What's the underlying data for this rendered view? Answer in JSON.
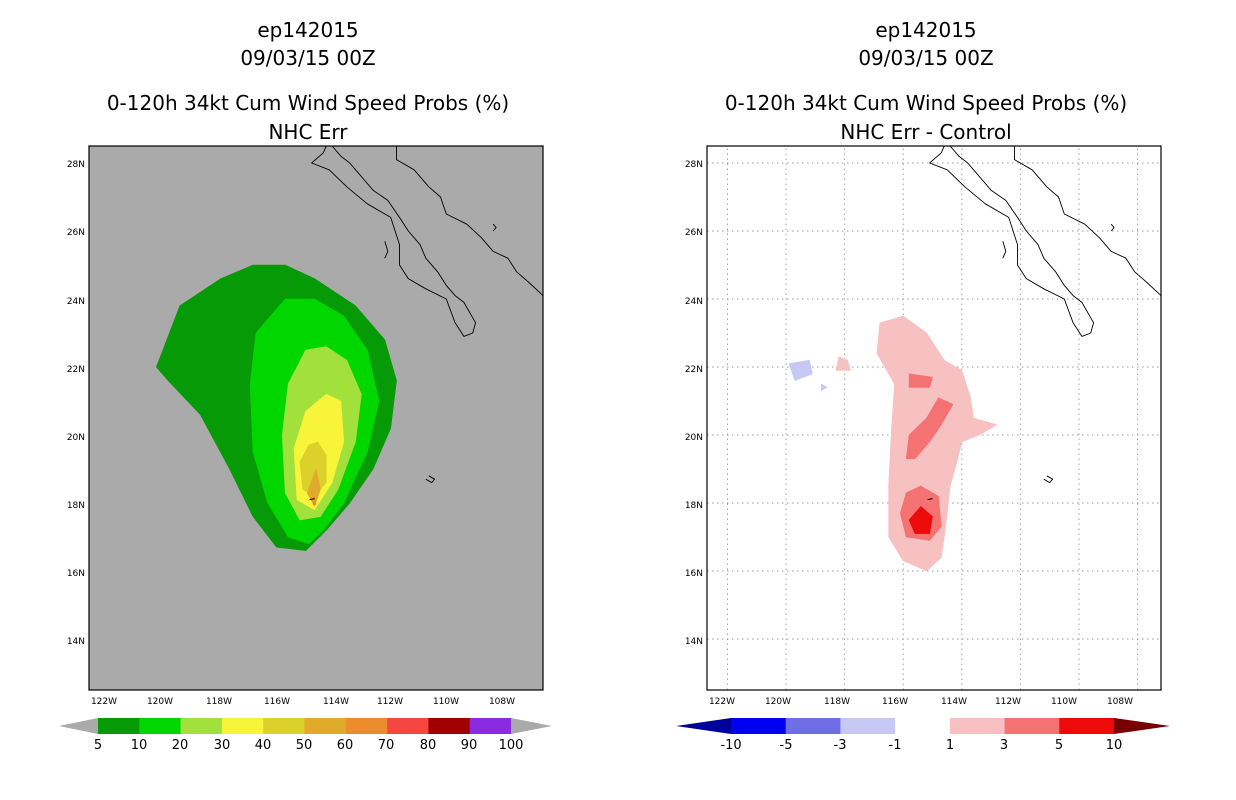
{
  "chart_data": [
    {
      "type": "contour-map",
      "title_lines": [
        "ep142015",
        "09/03/15 00Z",
        "0-120h 34kt Cum Wind Speed Probs (%)",
        "NHC Err"
      ],
      "x_range_deg_west": [
        122.7,
        107.2
      ],
      "y_range_deg_north": [
        12.5,
        28.5
      ],
      "x_ticks": [
        "122W",
        "120W",
        "118W",
        "116W",
        "114W",
        "112W",
        "110W",
        "108W"
      ],
      "y_ticks": [
        "14N",
        "16N",
        "18N",
        "20N",
        "22N",
        "24N",
        "26N",
        "28N"
      ],
      "background_color": "#aaaaaa",
      "gridlines": false,
      "colorbar": {
        "labels": [
          "5",
          "10",
          "20",
          "30",
          "40",
          "50",
          "60",
          "70",
          "80",
          "90",
          "100"
        ],
        "colors": [
          "#079a07",
          "#00d700",
          "#a2e13c",
          "#f7f43a",
          "#dcd02a",
          "#e0aa2b",
          "#ec8c2c",
          "#f54643",
          "#a00000",
          "#8a2be2"
        ],
        "end_color": "#aaaaaa"
      },
      "filled_levels": [
        {
          "level": 5,
          "color": "#079a07",
          "points": [
            [
              -120.4,
              22
            ],
            [
              -119.6,
              23.8
            ],
            [
              -118.2,
              24.6
            ],
            [
              -117.1,
              25
            ],
            [
              -116,
              25
            ],
            [
              -115,
              24.6
            ],
            [
              -113.6,
              23.8
            ],
            [
              -112.6,
              22.8
            ],
            [
              -112.2,
              21.6
            ],
            [
              -112.4,
              20.2
            ],
            [
              -113,
              19
            ],
            [
              -113.8,
              18
            ],
            [
              -114.6,
              17.2
            ],
            [
              -115.3,
              16.6
            ],
            [
              -116.3,
              16.7
            ],
            [
              -117.1,
              17.6
            ],
            [
              -117.9,
              19
            ],
            [
              -118.9,
              20.6
            ],
            [
              -120,
              21.6
            ]
          ]
        },
        {
          "level": 10,
          "color": "#00d700",
          "points": [
            [
              -117,
              23
            ],
            [
              -116,
              24
            ],
            [
              -115,
              24
            ],
            [
              -114,
              23.5
            ],
            [
              -113.2,
              22.5
            ],
            [
              -112.8,
              21
            ],
            [
              -113.2,
              19.5
            ],
            [
              -114,
              18
            ],
            [
              -114.7,
              17.2
            ],
            [
              -115.2,
              16.8
            ],
            [
              -115.9,
              17
            ],
            [
              -116.6,
              18
            ],
            [
              -117.1,
              19.5
            ],
            [
              -117.2,
              21.5
            ]
          ]
        },
        {
          "level": 20,
          "color": "#a2e13c",
          "points": [
            [
              -115.3,
              22.5
            ],
            [
              -114.6,
              22.6
            ],
            [
              -113.9,
              22.2
            ],
            [
              -113.4,
              21.2
            ],
            [
              -113.6,
              19.8
            ],
            [
              -114.2,
              18.4
            ],
            [
              -114.8,
              17.6
            ],
            [
              -115.5,
              17.5
            ],
            [
              -116,
              18.3
            ],
            [
              -116.1,
              20
            ],
            [
              -115.9,
              21.5
            ]
          ]
        },
        {
          "level": 30,
          "color": "#f7f43a",
          "points": [
            [
              -114.6,
              21.2
            ],
            [
              -114.1,
              21
            ],
            [
              -114,
              19.8
            ],
            [
              -114.4,
              18.6
            ],
            [
              -115,
              17.8
            ],
            [
              -115.6,
              18.1
            ],
            [
              -115.7,
              19.6
            ],
            [
              -115.3,
              20.7
            ]
          ]
        },
        {
          "level": 40,
          "color": "#dcd02a",
          "points": [
            [
              -114.9,
              19.8
            ],
            [
              -114.6,
              19.4
            ],
            [
              -114.6,
              18.6
            ],
            [
              -115,
              18.2
            ],
            [
              -115.4,
              18.4
            ],
            [
              -115.5,
              19.2
            ],
            [
              -115.2,
              19.7
            ]
          ]
        },
        {
          "level": 50,
          "color": "#e0aa2b",
          "points": [
            [
              -114.95,
              19
            ],
            [
              -114.8,
              18.4
            ],
            [
              -115,
              17.9
            ],
            [
              -115.25,
              18.3
            ]
          ]
        },
        {
          "level": 60,
          "color": "#ec8c2c",
          "points": [
            [
              -115,
              18.2
            ],
            [
              -114.95,
              17.95
            ],
            [
              -115.05,
              17.95
            ]
          ]
        }
      ]
    },
    {
      "type": "contour-map",
      "title_lines": [
        "ep142015",
        "09/03/15 00Z",
        "0-120h 34kt Cum Wind Speed Probs (%)",
        "NHC Err - Control"
      ],
      "x_range_deg_west": [
        122.7,
        107.2
      ],
      "y_range_deg_north": [
        12.5,
        28.5
      ],
      "x_ticks": [
        "122W",
        "120W",
        "118W",
        "116W",
        "114W",
        "112W",
        "110W",
        "108W"
      ],
      "y_ticks": [
        "14N",
        "16N",
        "18N",
        "20N",
        "22N",
        "24N",
        "26N",
        "28N"
      ],
      "background_color": "#ffffff",
      "gridlines": true,
      "colorbar": {
        "labels": [
          "-10",
          "-5",
          "-3",
          "-1",
          "1",
          "3",
          "5",
          "10"
        ],
        "colors": [
          "#0000f0",
          "#6e6ee6",
          "#c8c8f5",
          "#ffffff",
          "#f8c1c1",
          "#f47272",
          "#ec0a0a"
        ],
        "left_end_color": "#00009a",
        "right_end_color": "#780000"
      },
      "filled_levels": [
        {
          "level": 1,
          "color": "#f8c1c1",
          "points": [
            [
              -116.8,
              23.3
            ],
            [
              -116,
              23.5
            ],
            [
              -115.2,
              23
            ],
            [
              -114.6,
              22.2
            ],
            [
              -114,
              21.9
            ],
            [
              -113.7,
              21.1
            ],
            [
              -113.6,
              20.5
            ],
            [
              -112.8,
              20.3
            ],
            [
              -113.4,
              20
            ],
            [
              -114,
              19.8
            ],
            [
              -114.2,
              19.1
            ],
            [
              -114.4,
              18.5
            ],
            [
              -114.5,
              17.7
            ],
            [
              -114.6,
              17
            ],
            [
              -114.7,
              16.4
            ],
            [
              -115.2,
              16
            ],
            [
              -116,
              16.3
            ],
            [
              -116.5,
              17
            ],
            [
              -116.5,
              18.5
            ],
            [
              -116.4,
              20.2
            ],
            [
              -116.3,
              21.5
            ],
            [
              -116.9,
              22.4
            ]
          ]
        },
        {
          "level": 1,
          "color": "#f8c1c1",
          "points": [
            [
              -118.2,
              22.3
            ],
            [
              -117.9,
              22.2
            ],
            [
              -117.8,
              21.9
            ],
            [
              -118.3,
              21.9
            ]
          ]
        },
        {
          "level": -1,
          "color": "#c8c8f5",
          "points": [
            [
              -119.9,
              22.1
            ],
            [
              -119.2,
              22.2
            ],
            [
              -119.1,
              21.8
            ],
            [
              -119.7,
              21.6
            ]
          ]
        },
        {
          "level": -1,
          "color": "#c8c8f5",
          "points": [
            [
              -118.8,
              21.5
            ],
            [
              -118.6,
              21.4
            ],
            [
              -118.8,
              21.3
            ]
          ]
        },
        {
          "level": 3,
          "color": "#f47272",
          "points": [
            [
              -114.8,
              21.1
            ],
            [
              -114.3,
              20.9
            ],
            [
              -114.7,
              20.3
            ],
            [
              -115.1,
              19.8
            ],
            [
              -115.6,
              19.3
            ],
            [
              -115.9,
              19.3
            ],
            [
              -115.8,
              20
            ],
            [
              -115.2,
              20.5
            ]
          ]
        },
        {
          "level": 3,
          "color": "#f47272",
          "points": [
            [
              -115.8,
              21.8
            ],
            [
              -115,
              21.7
            ],
            [
              -115.1,
              21.4
            ],
            [
              -115.8,
              21.4
            ]
          ]
        },
        {
          "level": 3,
          "color": "#f47272",
          "points": [
            [
              -115.4,
              18.5
            ],
            [
              -114.8,
              18.2
            ],
            [
              -114.7,
              17.3
            ],
            [
              -115.1,
              16.9
            ],
            [
              -115.9,
              17
            ],
            [
              -116.1,
              17.7
            ],
            [
              -115.9,
              18.3
            ]
          ]
        },
        {
          "level": 5,
          "color": "#ec0a0a",
          "points": [
            [
              -115.4,
              17.9
            ],
            [
              -115,
              17.6
            ],
            [
              -115.1,
              17.1
            ],
            [
              -115.6,
              17.1
            ],
            [
              -115.8,
              17.5
            ]
          ]
        }
      ]
    }
  ],
  "coastline": [
    [
      [
        -114.4,
        28.5
      ],
      [
        -114.1,
        28.2
      ],
      [
        -113.8,
        28
      ],
      [
        -113.5,
        27.7
      ],
      [
        -113.3,
        27.5
      ],
      [
        -113,
        27.2
      ],
      [
        -112.5,
        26.9
      ],
      [
        -112.1,
        26.4
      ],
      [
        -111.8,
        26
      ],
      [
        -111.4,
        25.6
      ],
      [
        -111.2,
        25.2
      ],
      [
        -110.8,
        24.8
      ],
      [
        -110.5,
        24.4
      ],
      [
        -110.2,
        24.1
      ],
      [
        -109.9,
        23.9
      ],
      [
        -109.5,
        23.3
      ],
      [
        -109.6,
        23
      ],
      [
        -109.9,
        22.9
      ],
      [
        -110.2,
        23.3
      ],
      [
        -110.5,
        24
      ],
      [
        -111.2,
        24.3
      ],
      [
        -111.8,
        24.6
      ],
      [
        -112.1,
        25
      ],
      [
        -112.1,
        25.6
      ],
      [
        -112.4,
        26.4
      ],
      [
        -113.2,
        26.8
      ],
      [
        -113.9,
        27.3
      ],
      [
        -114.5,
        27.8
      ],
      [
        -115.1,
        28
      ],
      [
        -114.7,
        28.3
      ],
      [
        -114.6,
        28.5
      ]
    ],
    [
      [
        -112.2,
        28.5
      ],
      [
        -112.2,
        28.1
      ],
      [
        -111.6,
        27.8
      ],
      [
        -111.1,
        27.3
      ],
      [
        -110.7,
        27
      ],
      [
        -110.5,
        26.5
      ],
      [
        -109.8,
        26.2
      ],
      [
        -109.3,
        25.8
      ],
      [
        -108.9,
        25.4
      ],
      [
        -108.4,
        25.2
      ],
      [
        -108.1,
        24.8
      ],
      [
        -107.7,
        24.5
      ],
      [
        -107.2,
        24.1
      ]
    ],
    [
      [
        -111.1,
        18.8
      ],
      [
        -110.9,
        18.7
      ],
      [
        -111,
        18.6
      ],
      [
        -111.2,
        18.7
      ]
    ],
    [
      [
        -108.9,
        26.2
      ],
      [
        -108.8,
        26.1
      ],
      [
        -108.9,
        26
      ]
    ],
    [
      [
        -112.6,
        25.7
      ],
      [
        -112.5,
        25.4
      ],
      [
        -112.6,
        25.2
      ]
    ]
  ],
  "storm_marker": [
    -115.1,
    18.1
  ]
}
